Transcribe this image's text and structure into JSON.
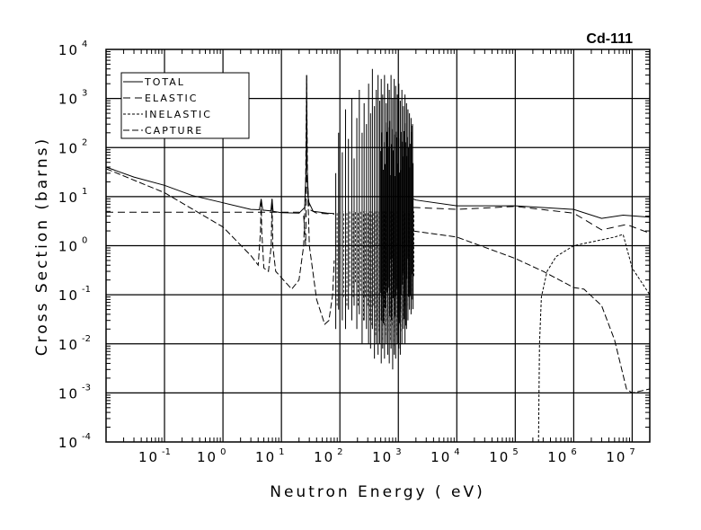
{
  "chart_data": {
    "type": "line",
    "title": "Cd-111",
    "xlabel": "Neutron Energy ( eV)",
    "ylabel": "Cross Section (barns)",
    "xscale": "log",
    "yscale": "log",
    "xlim": [
      0.01,
      20000000
    ],
    "ylim": [
      0.0001,
      10000
    ],
    "grid": true,
    "legend_position": "top-left",
    "x_ticks": [
      {
        "base": "10",
        "exp": "-1",
        "value": 0.1
      },
      {
        "base": "10",
        "exp": "0",
        "value": 1
      },
      {
        "base": "10",
        "exp": "1",
        "value": 10
      },
      {
        "base": "10",
        "exp": "2",
        "value": 100
      },
      {
        "base": "10",
        "exp": "3",
        "value": 1000
      },
      {
        "base": "10",
        "exp": "4",
        "value": 10000
      },
      {
        "base": "10",
        "exp": "5",
        "value": 100000
      },
      {
        "base": "10",
        "exp": "6",
        "value": 1000000
      },
      {
        "base": "10",
        "exp": "7",
        "value": 10000000
      }
    ],
    "y_ticks": [
      {
        "base": "10",
        "exp": "4",
        "value": 10000
      },
      {
        "base": "10",
        "exp": "3",
        "value": 1000
      },
      {
        "base": "10",
        "exp": "2",
        "value": 100
      },
      {
        "base": "10",
        "exp": "1",
        "value": 10
      },
      {
        "base": "10",
        "exp": "0",
        "value": 1
      },
      {
        "base": "10",
        "exp": "-1",
        "value": 0.1
      },
      {
        "base": "10",
        "exp": "-2",
        "value": 0.01
      },
      {
        "base": "10",
        "exp": "-3",
        "value": 0.001
      },
      {
        "base": "10",
        "exp": "-4",
        "value": 0.0001
      }
    ],
    "series": [
      {
        "name": "TOTAL",
        "dash": "none",
        "segments": [
          [
            [
              0.01,
              40
            ],
            [
              0.03,
              25
            ],
            [
              0.1,
              17
            ],
            [
              0.3,
              10.5
            ],
            [
              1,
              7.5
            ],
            [
              3,
              5.5
            ],
            [
              4.2,
              5.4
            ],
            [
              4.5,
              9
            ],
            [
              4.8,
              5.3
            ],
            [
              6.6,
              5.1
            ],
            [
              6.9,
              9
            ],
            [
              7.2,
              5.0
            ],
            [
              10,
              4.7
            ],
            [
              20,
              4.6
            ],
            [
              25,
              6
            ],
            [
              26.5,
              40
            ],
            [
              27,
              3000
            ],
            [
              27.5,
              40
            ],
            [
              29,
              8
            ],
            [
              35,
              5
            ],
            [
              60,
              4.6
            ],
            [
              80,
              4.5
            ]
          ],
          [
            [
              1800,
              9
            ],
            [
              2000,
              8.5
            ],
            [
              10000,
              6.5
            ],
            [
              100000,
              6.5
            ],
            [
              1000000,
              5.5
            ],
            [
              3000000,
              3.6
            ],
            [
              7000000,
              4.2
            ],
            [
              20000000,
              3.8
            ]
          ]
        ]
      },
      {
        "name": "ELASTIC",
        "dash": "8,5",
        "segments": [
          [
            [
              0.01,
              4.8
            ],
            [
              20,
              4.8
            ],
            [
              24,
              4
            ],
            [
              26,
              1
            ],
            [
              27,
              30
            ],
            [
              28,
              20
            ],
            [
              30,
              5.5
            ],
            [
              40,
              4.6
            ],
            [
              80,
              4.4
            ]
          ],
          [
            [
              1800,
              6
            ],
            [
              2000,
              6
            ],
            [
              10000,
              5.5
            ],
            [
              100000,
              6.3
            ],
            [
              1000000,
              4.6
            ],
            [
              3000000,
              2.1
            ],
            [
              8000000,
              2.7
            ],
            [
              20000000,
              1.8
            ]
          ]
        ]
      },
      {
        "name": "INELASTIC",
        "dash": "3,2",
        "segments": [
          [
            [
              250000,
              0.0001
            ],
            [
              260000,
              0.01
            ],
            [
              280000,
              0.09
            ],
            [
              350000,
              0.3
            ],
            [
              500000,
              0.6
            ],
            [
              1000000,
              1.0
            ],
            [
              5000000,
              1.5
            ],
            [
              7000000,
              1.7
            ],
            [
              10000000,
              0.35
            ],
            [
              20000000,
              0.1
            ]
          ]
        ]
      },
      {
        "name": "CAPTURE",
        "dash": "7,3",
        "segments": [
          [
            [
              0.01,
              37
            ],
            [
              0.1,
              12
            ],
            [
              1,
              2.4
            ],
            [
              3,
              0.63
            ],
            [
              4,
              0.4
            ],
            [
              4.4,
              2
            ],
            [
              4.5,
              9
            ],
            [
              4.6,
              2
            ],
            [
              5,
              0.35
            ],
            [
              6,
              0.3
            ],
            [
              6.7,
              1
            ],
            [
              6.9,
              9
            ],
            [
              7.1,
              1
            ],
            [
              8,
              0.3
            ],
            [
              15,
              0.13
            ],
            [
              20,
              0.2
            ],
            [
              24,
              1
            ],
            [
              26,
              20
            ],
            [
              27,
              3000
            ],
            [
              28,
              20
            ],
            [
              30,
              1
            ],
            [
              40,
              0.08
            ],
            [
              55,
              0.025
            ],
            [
              65,
              0.03
            ],
            [
              75,
              0.1
            ],
            [
              80,
              0.5
            ]
          ],
          [
            [
              1800,
              2
            ],
            [
              10000,
              1.5
            ],
            [
              100000,
              0.55
            ],
            [
              300000,
              0.3
            ],
            [
              1000000,
              0.14
            ],
            [
              1500000,
              0.13
            ],
            [
              3000000,
              0.06
            ],
            [
              5000000,
              0.012
            ],
            [
              8000000,
              0.0012
            ],
            [
              10000000,
              0.001
            ],
            [
              20000000,
              0.0012
            ]
          ]
        ]
      }
    ],
    "resonances": [
      [
        85,
        30,
        0.02
      ],
      [
        95,
        200,
        0.05
      ],
      [
        110,
        80,
        0.03
      ],
      [
        125,
        600,
        0.02
      ],
      [
        140,
        150,
        0.05
      ],
      [
        160,
        1000,
        0.03
      ],
      [
        175,
        60,
        0.06
      ],
      [
        195,
        400,
        0.02
      ],
      [
        215,
        1500,
        0.04
      ],
      [
        240,
        200,
        0.01
      ],
      [
        260,
        800,
        0.03
      ],
      [
        285,
        300,
        0.02
      ],
      [
        310,
        2000,
        0.01
      ],
      [
        335,
        500,
        0.008
      ],
      [
        360,
        4000,
        0.02
      ],
      [
        390,
        700,
        0.005
      ],
      [
        420,
        1500,
        0.01
      ],
      [
        450,
        3000,
        0.006
      ],
      [
        480,
        900,
        0.01
      ],
      [
        510,
        2500,
        0.004
      ],
      [
        540,
        1200,
        0.008
      ],
      [
        580,
        3000,
        0.005
      ],
      [
        620,
        800,
        0.01
      ],
      [
        660,
        2000,
        0.006
      ],
      [
        700,
        1500,
        0.004
      ],
      [
        750,
        3000,
        0.008
      ],
      [
        800,
        1000,
        0.003
      ],
      [
        850,
        2500,
        0.006
      ],
      [
        900,
        1800,
        0.005
      ],
      [
        960,
        1200,
        0.01
      ],
      [
        1020,
        2000,
        0.008
      ],
      [
        1080,
        900,
        0.006
      ],
      [
        1150,
        1500,
        0.01
      ],
      [
        1220,
        700,
        0.02
      ],
      [
        1300,
        1200,
        0.01
      ],
      [
        1380,
        800,
        0.02
      ],
      [
        1460,
        600,
        0.03
      ],
      [
        1550,
        500,
        0.05
      ],
      [
        1650,
        400,
        0.04
      ],
      [
        1750,
        300,
        0.08
      ]
    ],
    "dense_band": {
      "from": 500,
      "to": 1800,
      "min": 0.02,
      "max": 400
    }
  },
  "legend": [
    "TOTAL",
    "ELASTIC",
    "INELASTIC",
    "CAPTURE"
  ]
}
